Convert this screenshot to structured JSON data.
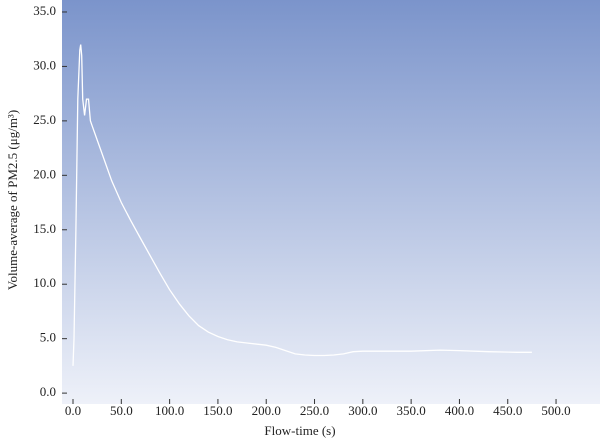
{
  "chart_data": {
    "type": "line",
    "xlabel": "Flow-time (s)",
    "ylabel": "Volume-average of PM2.5 (μg/m³)",
    "color": "#ffffff",
    "x": [
      0,
      1,
      3,
      5,
      7,
      8,
      9,
      10,
      12,
      14,
      16,
      18,
      20,
      30,
      40,
      50,
      60,
      70,
      80,
      90,
      100,
      110,
      120,
      130,
      140,
      150,
      160,
      170,
      180,
      200,
      210,
      220,
      230,
      240,
      250,
      260,
      270,
      280,
      290,
      300,
      320,
      350,
      380,
      400,
      430,
      460,
      475
    ],
    "values": [
      2.5,
      5,
      15,
      27,
      31.5,
      32,
      31,
      27,
      25.5,
      27,
      27,
      25,
      24.5,
      22,
      19.5,
      17.5,
      15.8,
      14.2,
      12.6,
      11,
      9.5,
      8.2,
      7.1,
      6.2,
      5.6,
      5.2,
      4.9,
      4.7,
      4.6,
      4.4,
      4.2,
      3.9,
      3.6,
      3.5,
      3.45,
      3.45,
      3.5,
      3.6,
      3.8,
      3.85,
      3.85,
      3.85,
      3.95,
      3.9,
      3.8,
      3.75,
      3.75
    ],
    "xlim": [
      -11.4,
      545.5
    ],
    "ylim": [
      -1,
      36.1
    ],
    "xticks": [
      {
        "value": 0,
        "label": "0.0"
      },
      {
        "value": 50,
        "label": "50.0"
      },
      {
        "value": 100,
        "label": "100.0"
      },
      {
        "value": 150,
        "label": "150.0"
      },
      {
        "value": 200,
        "label": "200.0"
      },
      {
        "value": 250,
        "label": "250.0"
      },
      {
        "value": 300,
        "label": "300.0"
      },
      {
        "value": 350,
        "label": "350.0"
      },
      {
        "value": 400,
        "label": "400.0"
      },
      {
        "value": 450,
        "label": "450.0"
      },
      {
        "value": 500,
        "label": "500.0"
      }
    ],
    "yticks": [
      {
        "value": 0,
        "label": "0.0"
      },
      {
        "value": 5,
        "label": "5.0"
      },
      {
        "value": 10,
        "label": "10.0"
      },
      {
        "value": 15,
        "label": "15.0"
      },
      {
        "value": 20,
        "label": "20.0"
      },
      {
        "value": 25,
        "label": "25.0"
      },
      {
        "value": 30,
        "label": "30.0"
      },
      {
        "value": 35,
        "label": "35.0"
      }
    ]
  }
}
